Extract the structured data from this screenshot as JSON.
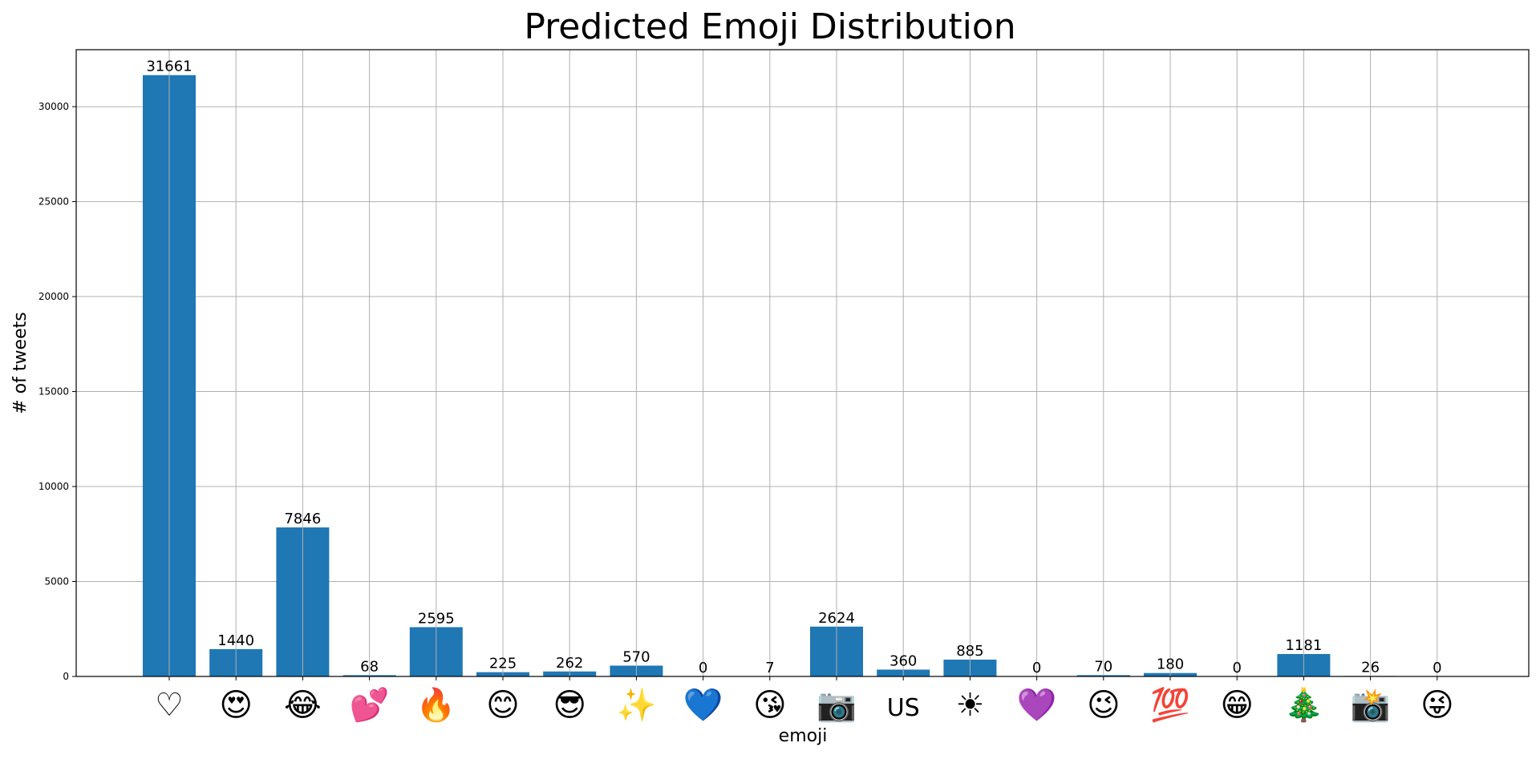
{
  "chart_data": {
    "type": "bar",
    "title": "Predicted Emoji Distribution",
    "xlabel": "emoji",
    "ylabel": "# of tweets",
    "ylim": [
      0,
      33000
    ],
    "yticks": [
      0,
      5000,
      10000,
      15000,
      20000,
      25000,
      30000
    ],
    "grid": true,
    "color": "#1f77b4",
    "categories": [
      "♡",
      "😍",
      "😂",
      "💕",
      "🔥",
      "😊",
      "😎",
      "✨",
      "💙",
      "😘",
      "📷",
      "US",
      "☀",
      "💜",
      "😉",
      "💯",
      "😁",
      "🎄",
      "📸",
      "😜"
    ],
    "values": [
      31661,
      1440,
      7846,
      68,
      2595,
      225,
      262,
      570,
      0,
      7,
      2624,
      360,
      885,
      0,
      70,
      180,
      0,
      1181,
      26,
      0
    ]
  }
}
